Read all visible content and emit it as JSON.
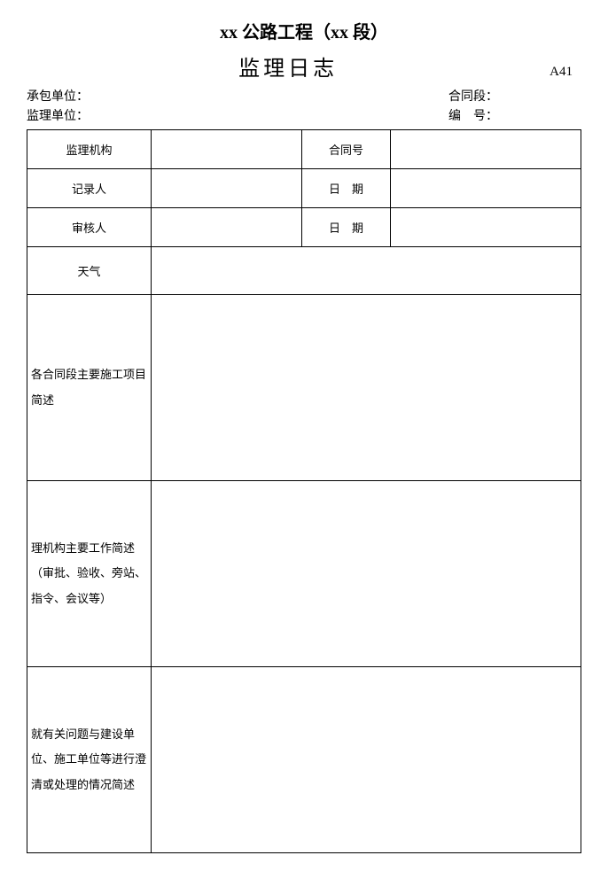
{
  "header": {
    "project_title": "xx 公路工程（xx 段）",
    "doc_title": "监理日志",
    "form_code": "A41"
  },
  "info": {
    "contractor_label": "承包单位：",
    "contract_section_label": "合同段：",
    "supervisor_label": "监理单位：",
    "serial_label": "编　号："
  },
  "table": {
    "r1c1": "监理机构",
    "r1c3": "合同号",
    "r2c1": "记录人",
    "r2c3": "日　期",
    "r3c1": "审核人",
    "r3c3": "日　期",
    "r4c1": "天气",
    "r5c1": "各合同段主要施工项目简述",
    "r6c1": "理机构主要工作简述（审批、验收、旁站、指令、会议等）",
    "r7c1": "就有关问题与建设单位、施工单位等进行澄清或处理的情况简述"
  }
}
